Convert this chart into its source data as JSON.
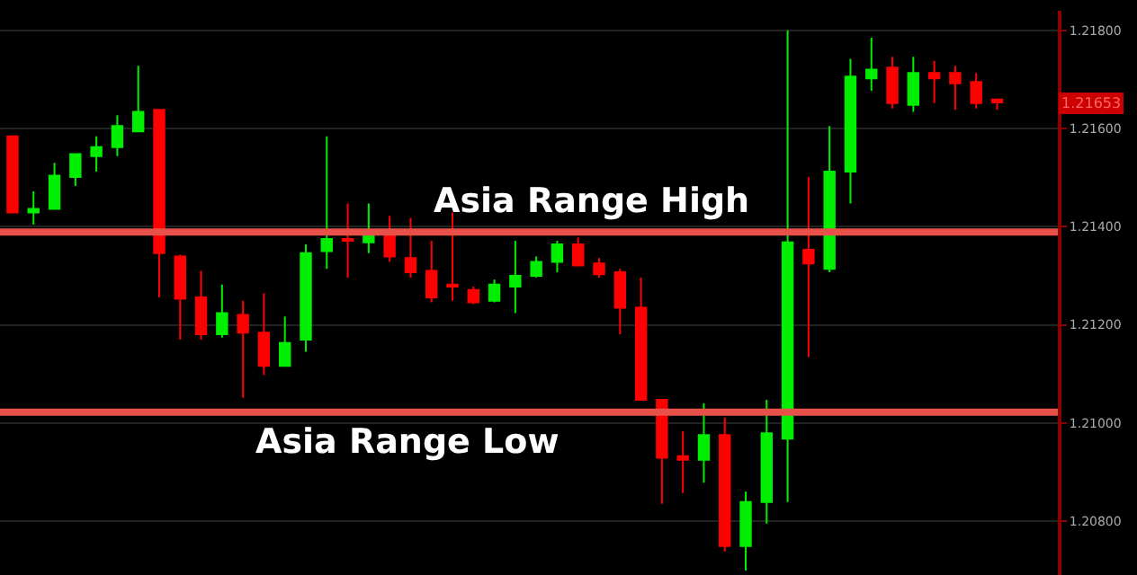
{
  "chart_data": {
    "type": "candlestick",
    "categories": [
      null,
      null,
      null,
      null,
      null,
      null,
      null,
      null,
      null,
      null,
      null,
      null,
      null,
      null,
      null,
      null,
      null,
      null,
      null,
      null,
      null,
      null,
      null,
      null,
      null,
      null,
      null,
      null,
      null,
      null,
      null,
      null,
      null,
      null,
      null,
      null,
      null,
      null,
      null,
      null,
      null,
      null,
      null,
      null,
      null,
      null,
      null,
      null
    ],
    "ohlc": [
      [
        1.21584,
        1.21584,
        1.21429,
        1.21429
      ],
      [
        1.21429,
        1.21472,
        1.21404,
        1.21436
      ],
      [
        1.21436,
        1.2153,
        1.21436,
        1.21504
      ],
      [
        1.21501,
        1.21548,
        1.21483,
        1.21548
      ],
      [
        1.21544,
        1.21584,
        1.21512,
        1.21562
      ],
      [
        1.21562,
        1.21627,
        1.21544,
        1.21605
      ],
      [
        1.21594,
        1.21728,
        1.21594,
        1.21634
      ],
      [
        1.21638,
        1.21638,
        1.21256,
        1.21346
      ],
      [
        1.21339,
        1.21343,
        1.2117,
        1.21253
      ],
      [
        1.21256,
        1.2131,
        1.2117,
        1.21181
      ],
      [
        1.21181,
        1.21282,
        1.21174,
        1.21224
      ],
      [
        1.2122,
        1.21249,
        1.21051,
        1.21184
      ],
      [
        1.21184,
        1.21264,
        1.21098,
        1.21116
      ],
      [
        1.21116,
        1.21217,
        1.21116,
        1.21163
      ],
      [
        1.2117,
        1.21364,
        1.21145,
        1.21346
      ],
      [
        1.2135,
        1.21584,
        1.21314,
        1.21375
      ],
      [
        1.21375,
        1.21447,
        1.21296,
        1.21371
      ],
      [
        1.21368,
        1.21447,
        1.21346,
        1.21386
      ],
      [
        1.21386,
        1.21422,
        1.21328,
        1.21339
      ],
      [
        1.21336,
        1.21418,
        1.21296,
        1.21307
      ],
      [
        1.2131,
        1.21371,
        1.21246,
        1.21256
      ],
      [
        1.21282,
        1.21429,
        1.21249,
        1.21278
      ],
      [
        1.21271,
        1.21278,
        1.21242,
        1.21246
      ],
      [
        1.21249,
        1.21292,
        1.21246,
        1.21282
      ],
      [
        1.21278,
        1.21371,
        1.21224,
        1.213
      ],
      [
        1.213,
        1.21339,
        1.21296,
        1.21328
      ],
      [
        1.21328,
        1.21371,
        1.21307,
        1.21364
      ],
      [
        1.21364,
        1.21378,
        1.21321,
        1.21321
      ],
      [
        1.21325,
        1.21336,
        1.21296,
        1.21303
      ],
      [
        1.21307,
        1.21314,
        1.21181,
        1.21235
      ],
      [
        1.21235,
        1.21296,
        1.21047,
        1.21047
      ],
      [
        1.21047,
        1.21047,
        1.20835,
        1.20929
      ],
      [
        1.20932,
        1.20983,
        1.20857,
        1.20925
      ],
      [
        1.20925,
        1.2104,
        1.20878,
        1.20975
      ],
      [
        1.20975,
        1.21011,
        1.20738,
        1.20749
      ],
      [
        1.20749,
        1.2086,
        1.20699,
        1.20839
      ],
      [
        1.20839,
        1.21047,
        1.20795,
        1.20979
      ],
      [
        1.20968,
        1.218,
        1.20839,
        1.21368
      ],
      [
        1.21353,
        1.21501,
        1.21134,
        1.21325
      ],
      [
        1.21314,
        1.21605,
        1.21307,
        1.21512
      ],
      [
        1.21512,
        1.21742,
        1.21447,
        1.21706
      ],
      [
        1.21702,
        1.21785,
        1.21677,
        1.2172
      ],
      [
        1.21724,
        1.21746,
        1.21641,
        1.21652
      ],
      [
        1.21648,
        1.21746,
        1.21634,
        1.21713
      ],
      [
        1.21713,
        1.21738,
        1.21652,
        1.21702
      ],
      [
        1.21713,
        1.21728,
        1.21638,
        1.21692
      ],
      [
        1.21695,
        1.21713,
        1.21641,
        1.21652
      ],
      [
        1.21659,
        1.21659,
        1.21638,
        1.21653
      ]
    ],
    "colors": [
      "#ff0000",
      "#00ee00",
      "#00ee00",
      "#00ee00",
      "#00ee00",
      "#00ee00",
      "#00ee00",
      "#ff0000",
      "#ff0000",
      "#ff0000",
      "#00ee00",
      "#ff0000",
      "#ff0000",
      "#00ee00",
      "#00ee00",
      "#00ee00",
      "#ff0000",
      "#00ee00",
      "#ff0000",
      "#ff0000",
      "#ff0000",
      "#ff0000",
      "#ff0000",
      "#00ee00",
      "#00ee00",
      "#00ee00",
      "#00ee00",
      "#ff0000",
      "#ff0000",
      "#ff0000",
      "#ff0000",
      "#ff0000",
      "#ff0000",
      "#00ee00",
      "#ff0000",
      "#00ee00",
      "#00ee00",
      "#00ee00",
      "#ff0000",
      "#00ee00",
      "#00ee00",
      "#00ee00",
      "#ff0000",
      "#00ee00",
      "#ff0000",
      "#ff0000",
      "#ff0000",
      "#ff0000"
    ],
    "ylim": [
      1.2069,
      1.2184
    ],
    "yticks": [
      {
        "value": 1.218,
        "label": "1.21800"
      },
      {
        "value": 1.216,
        "label": "1.21600"
      },
      {
        "value": 1.214,
        "label": "1.21400"
      },
      {
        "value": 1.212,
        "label": "1.21200"
      },
      {
        "value": 1.21,
        "label": "1.21000"
      },
      {
        "value": 1.208,
        "label": "1.20800"
      }
    ],
    "ref_lines": [
      {
        "axis": "y",
        "value": 1.21389,
        "label": "Asia Range High",
        "color": "#e8504a"
      },
      {
        "axis": "y",
        "value": 1.21022,
        "label": "Asia Range Low",
        "color": "#e8504a"
      }
    ],
    "annotations": [
      "1.21653"
    ],
    "grid": "y",
    "tick_labels": "y"
  }
}
